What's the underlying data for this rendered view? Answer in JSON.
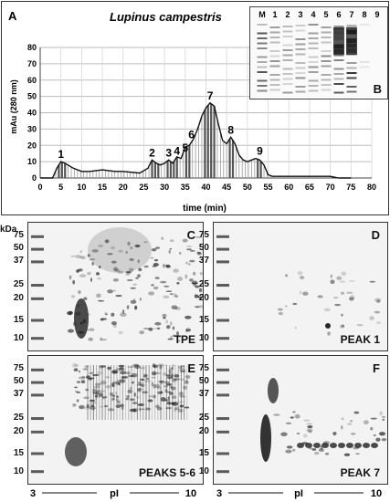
{
  "chart_data": {
    "type": "area",
    "panel_label": "A",
    "title": "Lupinus campestris",
    "xlabel": "time (min)",
    "ylabel": "mAu (280 nm)",
    "xlim": [
      0,
      80
    ],
    "ylim": [
      0,
      80
    ],
    "xticks": [
      0,
      5,
      10,
      15,
      20,
      25,
      30,
      35,
      40,
      45,
      50,
      55,
      60,
      65,
      70,
      75,
      80
    ],
    "yticks": [
      0,
      10,
      20,
      30,
      40,
      50,
      60,
      70,
      80
    ],
    "grid": true,
    "series": [
      {
        "x": [
          0,
          3,
          4,
          5,
          6,
          8,
          10,
          12,
          15,
          18,
          20,
          24,
          26,
          27,
          28,
          29,
          30,
          31,
          32,
          33,
          34,
          35,
          36,
          37,
          38,
          39,
          40,
          41,
          42,
          43,
          44,
          45,
          46,
          47,
          48,
          49,
          50,
          51,
          52,
          53,
          54,
          55,
          56,
          58,
          60,
          65,
          70,
          72,
          75
        ],
        "values": [
          0,
          0,
          6,
          10,
          9,
          6,
          4,
          4,
          5,
          4,
          4,
          3,
          6,
          11,
          9,
          8,
          9,
          11,
          9,
          13,
          12,
          19,
          20,
          24,
          30,
          38,
          43,
          46,
          44,
          33,
          23,
          21,
          25,
          21,
          14,
          11,
          10,
          11,
          12,
          11,
          8,
          2,
          1,
          1,
          1,
          1,
          1,
          0,
          0
        ]
      }
    ],
    "peaks": [
      {
        "label": "1",
        "x": 5,
        "y": 10
      },
      {
        "label": "2",
        "x": 27,
        "y": 11
      },
      {
        "label": "3",
        "x": 31,
        "y": 11
      },
      {
        "label": "4",
        "x": 33,
        "y": 12
      },
      {
        "label": "5",
        "x": 35,
        "y": 14
      },
      {
        "label": "6",
        "x": 36.5,
        "y": 22
      },
      {
        "label": "7",
        "x": 41,
        "y": 46
      },
      {
        "label": "8",
        "x": 46,
        "y": 25
      },
      {
        "label": "9",
        "x": 53,
        "y": 12
      }
    ]
  },
  "inset_gel": {
    "label": "B",
    "lanes": [
      "M",
      "1",
      "2",
      "3",
      "4",
      "5",
      "6",
      "7",
      "8",
      "9"
    ]
  },
  "gels_2d": [
    {
      "letter": "C",
      "caption": "TPE"
    },
    {
      "letter": "D",
      "caption": "PEAK 1"
    },
    {
      "letter": "E",
      "caption": "PEAKS 5-6"
    },
    {
      "letter": "F",
      "caption": "PEAK 7"
    }
  ],
  "kda_title": "kDa",
  "kda_markers": [
    "75",
    "50",
    "37",
    "25",
    "20",
    "15",
    "10"
  ],
  "pi_axis": {
    "min": "3",
    "label": "pI",
    "max": "10"
  }
}
